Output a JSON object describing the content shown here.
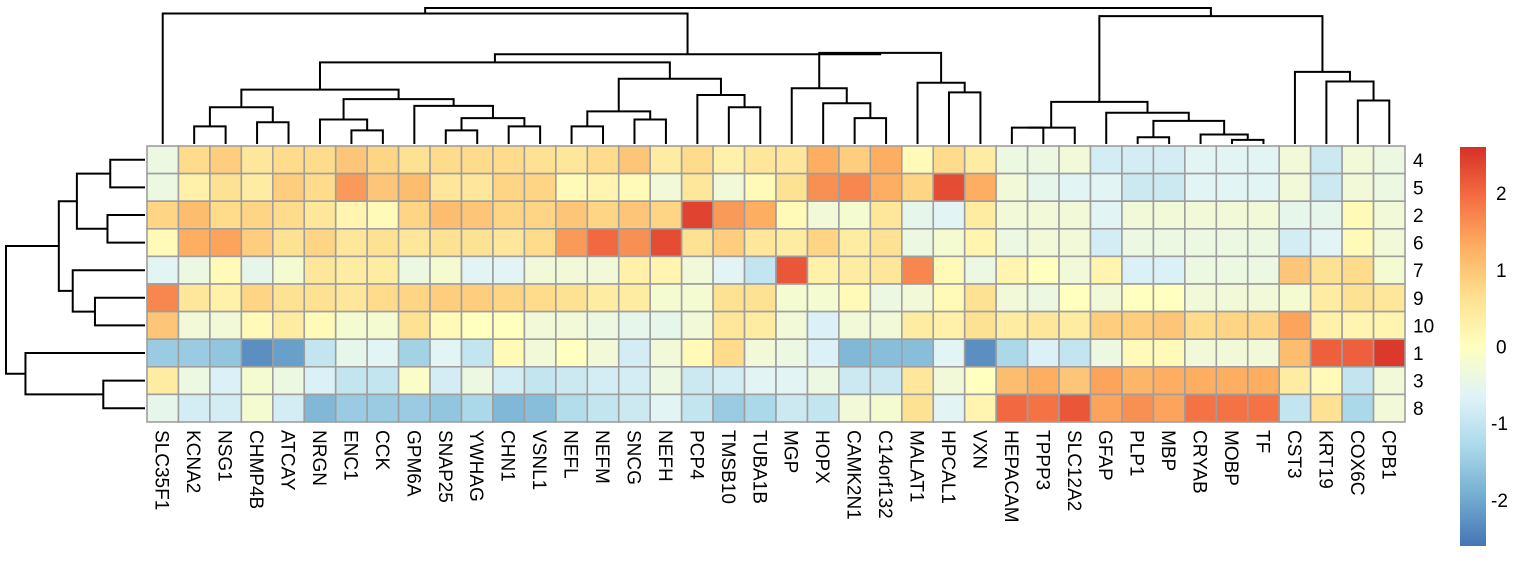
{
  "chart_data": {
    "type": "heatmap",
    "title": "",
    "xlabel": "",
    "ylabel": "",
    "columns": [
      "SLC35F1",
      "KCNA2",
      "NSG1",
      "CHMP4B",
      "ATCAY",
      "NRGN",
      "ENC1",
      "CCK",
      "GPM6A",
      "SNAP25",
      "YWHAG",
      "CHN1",
      "VSNL1",
      "NEFL",
      "NEFM",
      "SNCG",
      "NEFH",
      "PCP4",
      "TMSB10",
      "TUBA1B",
      "MGP",
      "HOPX",
      "CAMK2N1",
      "C14orf132",
      "MALAT1",
      "HPCAL1",
      "VXN",
      "HEPACAM",
      "TPPP3",
      "SLC12A2",
      "GFAP",
      "PLP1",
      "MBP",
      "CRYAB",
      "MOBP",
      "TF",
      "CST3",
      "KRT19",
      "COX6C",
      "CPB1"
    ],
    "rows": [
      "4",
      "5",
      "2",
      "6",
      "7",
      "9",
      "10",
      "1",
      "3",
      "8"
    ],
    "values": [
      [
        -0.4,
        0.7,
        0.9,
        0.5,
        0.7,
        0.7,
        1.0,
        0.8,
        0.6,
        0.7,
        0.7,
        0.7,
        0.6,
        0.5,
        0.7,
        1.0,
        0.4,
        0.7,
        0.3,
        0.5,
        0.5,
        1.3,
        0.9,
        1.3,
        0.1,
        0.7,
        0.4,
        -0.4,
        -0.4,
        -0.3,
        -0.8,
        -0.8,
        -0.8,
        -0.6,
        -0.6,
        -0.6,
        -0.3,
        -0.9,
        -0.3,
        -0.4
      ],
      [
        -0.4,
        0.3,
        0.6,
        0.4,
        0.9,
        0.7,
        1.5,
        1.0,
        1.1,
        0.5,
        0.5,
        0.8,
        0.8,
        0.1,
        0.2,
        0.1,
        -0.3,
        0.5,
        -0.3,
        0.1,
        0.6,
        1.6,
        1.7,
        1.3,
        0.8,
        2.3,
        1.3,
        -0.3,
        -0.5,
        -0.6,
        -0.6,
        -0.9,
        -0.9,
        -0.6,
        -0.6,
        -0.6,
        -0.3,
        -0.9,
        -0.3,
        -0.4
      ],
      [
        0.8,
        1.1,
        0.7,
        0.8,
        0.7,
        0.5,
        0.2,
        0.1,
        0.8,
        1.1,
        1.0,
        0.8,
        0.8,
        1.0,
        0.8,
        1.0,
        0.8,
        2.4,
        1.5,
        1.3,
        0.1,
        -0.3,
        -0.2,
        0.5,
        -0.5,
        -0.6,
        0.4,
        -0.3,
        -0.3,
        -0.3,
        -0.6,
        -0.3,
        -0.3,
        -0.3,
        -0.3,
        -0.3,
        -0.5,
        -0.5,
        0.1,
        -0.3
      ],
      [
        0.1,
        1.3,
        1.4,
        0.9,
        0.6,
        0.8,
        0.5,
        0.6,
        0.5,
        0.6,
        0.6,
        0.5,
        0.7,
        1.5,
        2.0,
        1.6,
        2.3,
        0.6,
        0.9,
        0.5,
        0.4,
        0.8,
        0.4,
        0.6,
        -0.4,
        -0.2,
        0.2,
        -0.4,
        -0.3,
        -0.3,
        -0.8,
        -0.4,
        -0.4,
        -0.4,
        -0.4,
        -0.4,
        -0.8,
        -0.6,
        0.1,
        -0.3
      ],
      [
        -0.6,
        -0.4,
        0.1,
        -0.5,
        -0.2,
        0.5,
        0.4,
        0.4,
        -0.4,
        -0.2,
        -0.6,
        -0.6,
        -0.3,
        -0.3,
        -0.3,
        0.3,
        0.2,
        -0.3,
        -0.6,
        -1.0,
        2.2,
        0.3,
        0.4,
        0.5,
        1.7,
        0.1,
        -0.4,
        0.2,
        0.0,
        -0.3,
        0.2,
        -0.7,
        -0.7,
        -0.4,
        -0.4,
        -0.4,
        1.0,
        0.6,
        0.7,
        -0.2
      ],
      [
        1.7,
        0.5,
        0.3,
        0.8,
        0.6,
        0.6,
        0.5,
        0.7,
        0.8,
        0.9,
        0.9,
        0.8,
        0.7,
        0.6,
        0.4,
        0.4,
        -0.2,
        -0.2,
        0.6,
        0.6,
        -0.2,
        -0.2,
        0.1,
        -0.4,
        -0.3,
        0.1,
        0.6,
        -0.3,
        -0.4,
        0.0,
        -0.3,
        0.0,
        0.0,
        -0.3,
        -0.3,
        -0.3,
        -0.2,
        0.4,
        0.6,
        0.5
      ],
      [
        1.0,
        -0.3,
        -0.3,
        0.1,
        0.4,
        0.1,
        -0.2,
        -0.2,
        0.6,
        0.1,
        0.0,
        0.0,
        -0.3,
        -0.3,
        -0.4,
        -0.5,
        -0.5,
        -0.3,
        0.5,
        0.4,
        -0.3,
        -0.7,
        -0.3,
        -0.3,
        0.4,
        0.3,
        0.6,
        0.4,
        0.5,
        0.4,
        0.9,
        0.9,
        1.0,
        0.7,
        0.8,
        0.8,
        1.4,
        0.3,
        0.2,
        0.2
      ],
      [
        -1.5,
        -1.5,
        -1.6,
        -2.3,
        -2.1,
        -1.0,
        -0.5,
        -0.6,
        -1.4,
        -0.6,
        -1.0,
        0.1,
        -0.3,
        0.0,
        -0.3,
        -0.8,
        -0.3,
        0.1,
        0.7,
        -0.3,
        -0.4,
        -0.7,
        -1.8,
        -1.7,
        -1.7,
        -0.6,
        -2.3,
        -1.3,
        -0.7,
        -1.0,
        -0.4,
        0.1,
        0.1,
        -0.3,
        -0.3,
        -0.3,
        1.1,
        2.1,
        2.1,
        2.5
      ],
      [
        0.4,
        -0.4,
        -0.7,
        -0.2,
        -0.4,
        -0.7,
        -1.0,
        -1.0,
        -0.1,
        -0.8,
        -0.4,
        -0.8,
        -1.0,
        -0.9,
        -0.8,
        -0.8,
        -0.4,
        -0.9,
        -0.8,
        -0.6,
        -0.6,
        -0.4,
        -0.9,
        -0.9,
        0.5,
        -0.3,
        0.0,
        1.1,
        1.3,
        1.0,
        1.4,
        1.2,
        1.3,
        1.3,
        1.3,
        1.3,
        0.4,
        0.1,
        -1.0,
        -0.3
      ],
      [
        -0.5,
        -0.8,
        -0.8,
        -0.2,
        -0.8,
        -1.8,
        -1.5,
        -1.5,
        -1.5,
        -1.6,
        -1.3,
        -1.8,
        -1.7,
        -1.2,
        -1.0,
        -0.9,
        -0.6,
        -1.0,
        -1.5,
        -1.3,
        -0.9,
        -1.0,
        -0.3,
        -0.2,
        0.6,
        -0.6,
        0.2,
        2.0,
        1.9,
        2.2,
        1.4,
        1.6,
        1.4,
        1.9,
        1.9,
        1.9,
        -1.0,
        0.6,
        -1.3,
        -0.3
      ]
    ],
    "colorbar": {
      "palette": "RdYlBu (reversed)",
      "range": [
        -2.6,
        2.6
      ],
      "ticks": [
        -2,
        -1,
        0,
        1,
        2
      ],
      "tick_labels": [
        "-2",
        "-1",
        "0",
        "1",
        "2"
      ],
      "low_color": "#4575B4",
      "mid_color": "#FFFFBF",
      "high_color": "#D73027"
    },
    "column_dendrogram": true,
    "row_dendrogram": true,
    "cell_border_color": "#9E9E9E"
  }
}
